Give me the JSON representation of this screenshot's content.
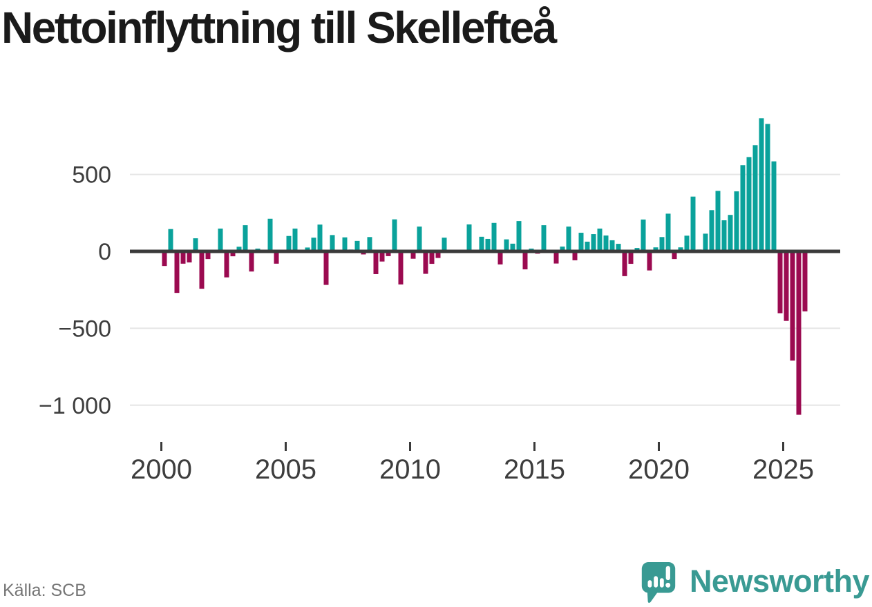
{
  "title": "Nettoinflyttning till Skellefteå",
  "source": "Källa: SCB",
  "brand": {
    "name": "Newsworthy",
    "color": "#399a93",
    "icon": "newsworthy-speech-bubble-bar-chart-icon"
  },
  "colors": {
    "background": "#ffffff",
    "title": "#1a1a1a",
    "positive_bar": "#0aa29b",
    "negative_bar": "#9b0a50",
    "axis": "#3a3a3a",
    "axis_label": "#3d3d3d",
    "grid": "#e5e5e5",
    "source_text": "#757575"
  },
  "chart_data": {
    "type": "bar",
    "title": "Nettoinflyttning till Skellefteå",
    "xlabel": "",
    "ylabel": "",
    "x_frequency": "quarterly",
    "start": "2000 Q1",
    "end": "2025 Q4",
    "grid": "horizontal",
    "legend_position": "none",
    "ylim": [
      -1100,
      900
    ],
    "ytick_values": [
      500,
      0,
      -500,
      -1000
    ],
    "ytick_labels": [
      "500",
      "0",
      "−500",
      "−1 000"
    ],
    "xtick_years": [
      2000,
      2005,
      2010,
      2015,
      2020,
      2025
    ],
    "xtick_labels": [
      "2000",
      "2005",
      "2010",
      "2015",
      "2020",
      "2025"
    ],
    "bar_color_positive": "#0aa29b",
    "bar_color_negative": "#9b0a50",
    "categories": [
      "2000 Q1",
      "2000 Q2",
      "2000 Q3",
      "2000 Q4",
      "2001 Q1",
      "2001 Q2",
      "2001 Q3",
      "2001 Q4",
      "2002 Q1",
      "2002 Q2",
      "2002 Q3",
      "2002 Q4",
      "2003 Q1",
      "2003 Q2",
      "2003 Q3",
      "2003 Q4",
      "2004 Q1",
      "2004 Q2",
      "2004 Q3",
      "2004 Q4",
      "2005 Q1",
      "2005 Q2",
      "2005 Q3",
      "2005 Q4",
      "2006 Q1",
      "2006 Q2",
      "2006 Q3",
      "2006 Q4",
      "2007 Q1",
      "2007 Q2",
      "2007 Q3",
      "2007 Q4",
      "2008 Q1",
      "2008 Q2",
      "2008 Q3",
      "2008 Q4",
      "2009 Q1",
      "2009 Q2",
      "2009 Q3",
      "2009 Q4",
      "2010 Q1",
      "2010 Q2",
      "2010 Q3",
      "2010 Q4",
      "2011 Q1",
      "2011 Q2",
      "2011 Q3",
      "2011 Q4",
      "2012 Q1",
      "2012 Q2",
      "2012 Q3",
      "2012 Q4",
      "2013 Q1",
      "2013 Q2",
      "2013 Q3",
      "2013 Q4",
      "2014 Q1",
      "2014 Q2",
      "2014 Q3",
      "2014 Q4",
      "2015 Q1",
      "2015 Q2",
      "2015 Q3",
      "2015 Q4",
      "2016 Q1",
      "2016 Q2",
      "2016 Q3",
      "2016 Q4",
      "2017 Q1",
      "2017 Q2",
      "2017 Q3",
      "2017 Q4",
      "2018 Q1",
      "2018 Q2",
      "2018 Q3",
      "2018 Q4",
      "2019 Q1",
      "2019 Q2",
      "2019 Q3",
      "2019 Q4",
      "2020 Q1",
      "2020 Q2",
      "2020 Q3",
      "2020 Q4",
      "2021 Q1",
      "2021 Q2",
      "2021 Q3",
      "2021 Q4",
      "2022 Q1",
      "2022 Q2",
      "2022 Q3",
      "2022 Q4",
      "2023 Q1",
      "2023 Q2",
      "2023 Q3",
      "2023 Q4",
      "2024 Q1",
      "2024 Q2",
      "2024 Q3",
      "2024 Q4",
      "2025 Q1",
      "2025 Q2",
      "2025 Q3",
      "2025 Q4"
    ],
    "values": [
      -95,
      145,
      -270,
      -80,
      -72,
      85,
      -243,
      -50,
      5,
      148,
      -169,
      -32,
      30,
      170,
      -131,
      18,
      3,
      212,
      -80,
      0,
      100,
      148,
      2,
      25,
      89,
      174,
      -218,
      106,
      2,
      91,
      12,
      68,
      -20,
      93,
      -148,
      -66,
      -31,
      208,
      -215,
      10,
      -48,
      161,
      -146,
      -81,
      -43,
      89,
      2,
      0,
      3,
      175,
      0,
      95,
      81,
      185,
      -85,
      78,
      50,
      197,
      -117,
      18,
      -15,
      170,
      0,
      -79,
      31,
      161,
      -58,
      121,
      63,
      112,
      148,
      103,
      72,
      49,
      -161,
      -81,
      22,
      207,
      -124,
      26,
      93,
      245,
      -50,
      26,
      102,
      356,
      12,
      115,
      268,
      393,
      202,
      237,
      390,
      560,
      613,
      690,
      865,
      828,
      585,
      -402,
      -452,
      -710,
      -1062,
      -390
    ]
  }
}
